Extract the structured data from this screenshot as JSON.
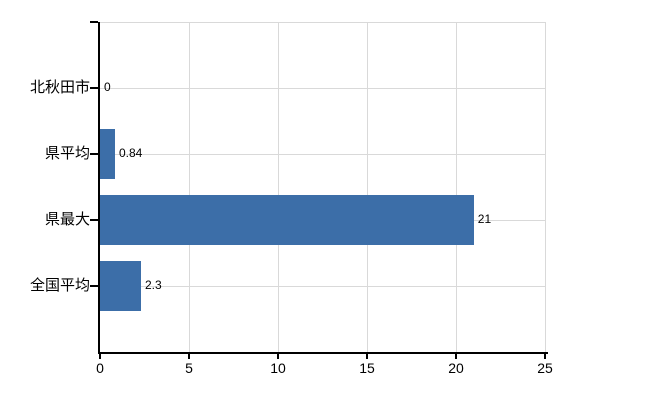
{
  "chart_data": {
    "type": "bar",
    "orientation": "horizontal",
    "title": "",
    "xlabel": "",
    "ylabel": "",
    "categories": [
      "北秋田市",
      "県平均",
      "県最大",
      "全国平均"
    ],
    "values": [
      0,
      0.84,
      21,
      2.3
    ],
    "value_labels": [
      "0",
      "0.84",
      "21",
      "2.3"
    ],
    "xlim": [
      0,
      25
    ],
    "x_ticks": [
      0,
      5,
      10,
      15,
      20,
      25
    ],
    "grid": true,
    "legend": false,
    "colors": {
      "bar": "#3C6EA8",
      "gridline": "#D9D9D9",
      "axis": "#000000",
      "text": "#000000",
      "background": "#FFFFFF"
    }
  }
}
